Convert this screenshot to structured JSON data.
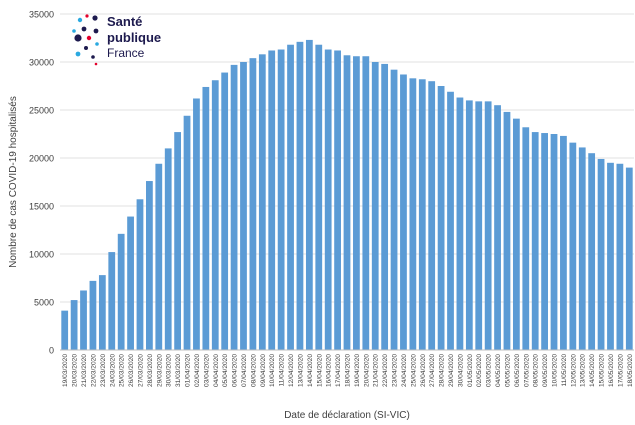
{
  "logo": {
    "line1": "Santé",
    "line2": "publique",
    "line3": "France"
  },
  "colors": {
    "bar": "#5b9bd5",
    "grid": "#d9d9d9",
    "text": "#404040",
    "logo_navy": "#1d1a4e",
    "logo_red": "#e4002b",
    "logo_cyan": "#2aa9e0"
  },
  "chart_data": {
    "type": "bar",
    "title": "",
    "xlabel": "Date de déclaration (SI-VIC)",
    "ylabel": "Nombre de cas COVID-19 hospitalisés",
    "ylim": [
      0,
      35000
    ],
    "yticks": [
      0,
      5000,
      10000,
      15000,
      20000,
      25000,
      30000,
      35000
    ],
    "grid": true,
    "categories": [
      "19/03/2020",
      "20/03/2020",
      "21/03/2020",
      "22/03/2020",
      "23/03/2020",
      "24/03/2020",
      "25/03/2020",
      "26/03/2020",
      "27/03/2020",
      "28/03/2020",
      "29/03/2020",
      "30/03/2020",
      "31/03/2020",
      "01/04/2020",
      "02/04/2020",
      "03/04/2020",
      "04/04/2020",
      "05/04/2020",
      "06/04/2020",
      "07/04/2020",
      "08/04/2020",
      "09/04/2020",
      "10/04/2020",
      "11/04/2020",
      "12/04/2020",
      "13/04/2020",
      "14/04/2020",
      "15/04/2020",
      "16/04/2020",
      "17/04/2020",
      "18/04/2020",
      "19/04/2020",
      "20/04/2020",
      "21/04/2020",
      "22/04/2020",
      "23/04/2020",
      "24/04/2020",
      "25/04/2020",
      "26/04/2020",
      "27/04/2020",
      "28/04/2020",
      "29/04/2020",
      "30/04/2020",
      "01/05/2020",
      "02/05/2020",
      "03/05/2020",
      "04/05/2020",
      "05/05/2020",
      "06/05/2020",
      "07/05/2020",
      "08/05/2020",
      "09/05/2020",
      "10/05/2020",
      "11/05/2020",
      "12/05/2020",
      "13/05/2020",
      "14/05/2020",
      "15/05/2020",
      "16/05/2020",
      "17/05/2020",
      "18/05/2020"
    ],
    "values": [
      4100,
      5200,
      6200,
      7200,
      7800,
      10200,
      12100,
      13900,
      15700,
      17600,
      19400,
      21000,
      22700,
      24400,
      26200,
      27400,
      28100,
      28900,
      29700,
      30000,
      30400,
      30800,
      31200,
      31300,
      31800,
      32100,
      32300,
      31800,
      31300,
      31200,
      30700,
      30600,
      30600,
      30000,
      29800,
      29200,
      28700,
      28300,
      28200,
      28000,
      27500,
      26900,
      26300,
      26000,
      25900,
      25900,
      25500,
      24800,
      24100,
      23200,
      22700,
      22600,
      22500,
      22300,
      21600,
      21100,
      20500,
      19900,
      19500,
      19400,
      19000
    ]
  }
}
